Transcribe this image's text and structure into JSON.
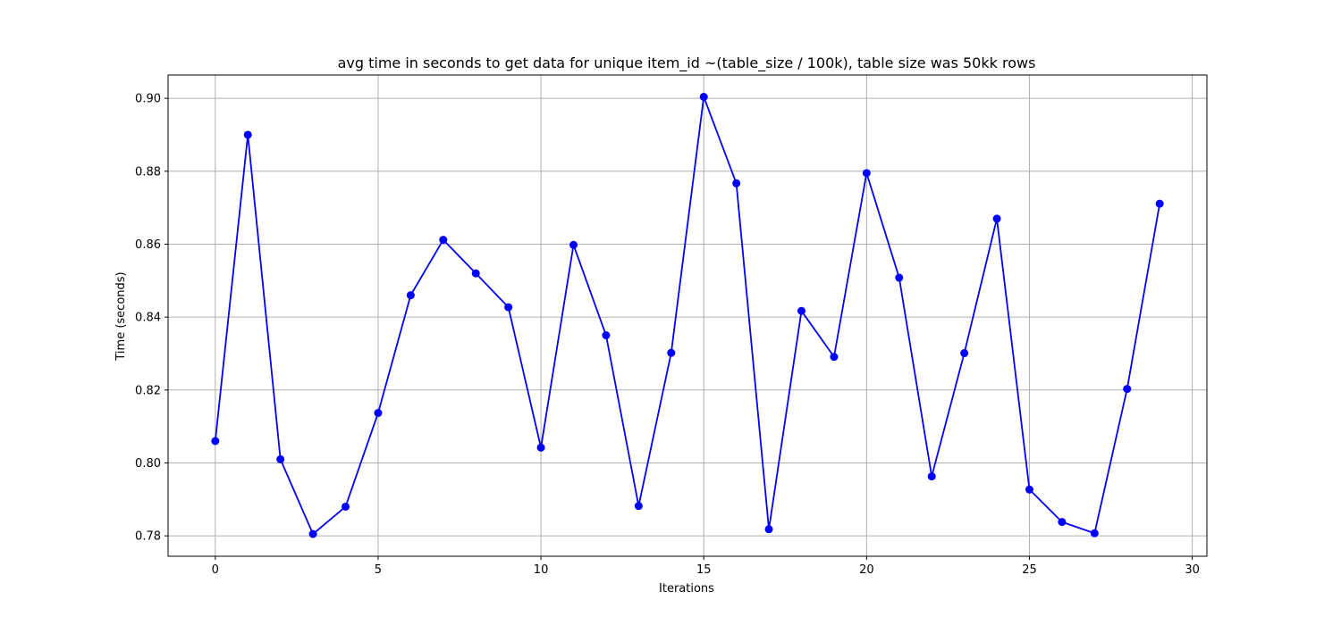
{
  "chart_data": {
    "type": "line",
    "title": "avg time in seconds to get data for unique item_id ~(table_size / 100k), table size was 50kk rows",
    "xlabel": "Iterations",
    "ylabel": "Time (seconds)",
    "xlim": [
      -1.45,
      30.45
    ],
    "ylim": [
      0.7744,
      0.9064
    ],
    "grid": true,
    "x_ticks": [
      0,
      5,
      10,
      15,
      20,
      25,
      30
    ],
    "x_tick_labels": [
      "0",
      "5",
      "10",
      "15",
      "20",
      "25",
      "30"
    ],
    "y_ticks": [
      0.78,
      0.8,
      0.82,
      0.84,
      0.86,
      0.88,
      0.9
    ],
    "y_tick_labels": [
      "0.78",
      "0.80",
      "0.82",
      "0.84",
      "0.86",
      "0.88",
      "0.90"
    ],
    "series": [
      {
        "color": "#0000ff",
        "marker": "circle",
        "x": [
          0,
          1,
          2,
          3,
          4,
          5,
          6,
          7,
          8,
          9,
          10,
          11,
          12,
          13,
          14,
          15,
          16,
          17,
          18,
          19,
          20,
          21,
          22,
          23,
          24,
          25,
          26,
          27,
          28,
          29
        ],
        "values": [
          0.806,
          0.89,
          0.801,
          0.7805,
          0.788,
          0.8137,
          0.846,
          0.8612,
          0.852,
          0.8427,
          0.8042,
          0.8598,
          0.835,
          0.7882,
          0.8302,
          0.9004,
          0.8767,
          0.7818,
          0.8417,
          0.8291,
          0.8795,
          0.8508,
          0.7963,
          0.8301,
          0.867,
          0.7927,
          0.7838,
          0.7807,
          0.8203,
          0.8711
        ]
      }
    ]
  }
}
